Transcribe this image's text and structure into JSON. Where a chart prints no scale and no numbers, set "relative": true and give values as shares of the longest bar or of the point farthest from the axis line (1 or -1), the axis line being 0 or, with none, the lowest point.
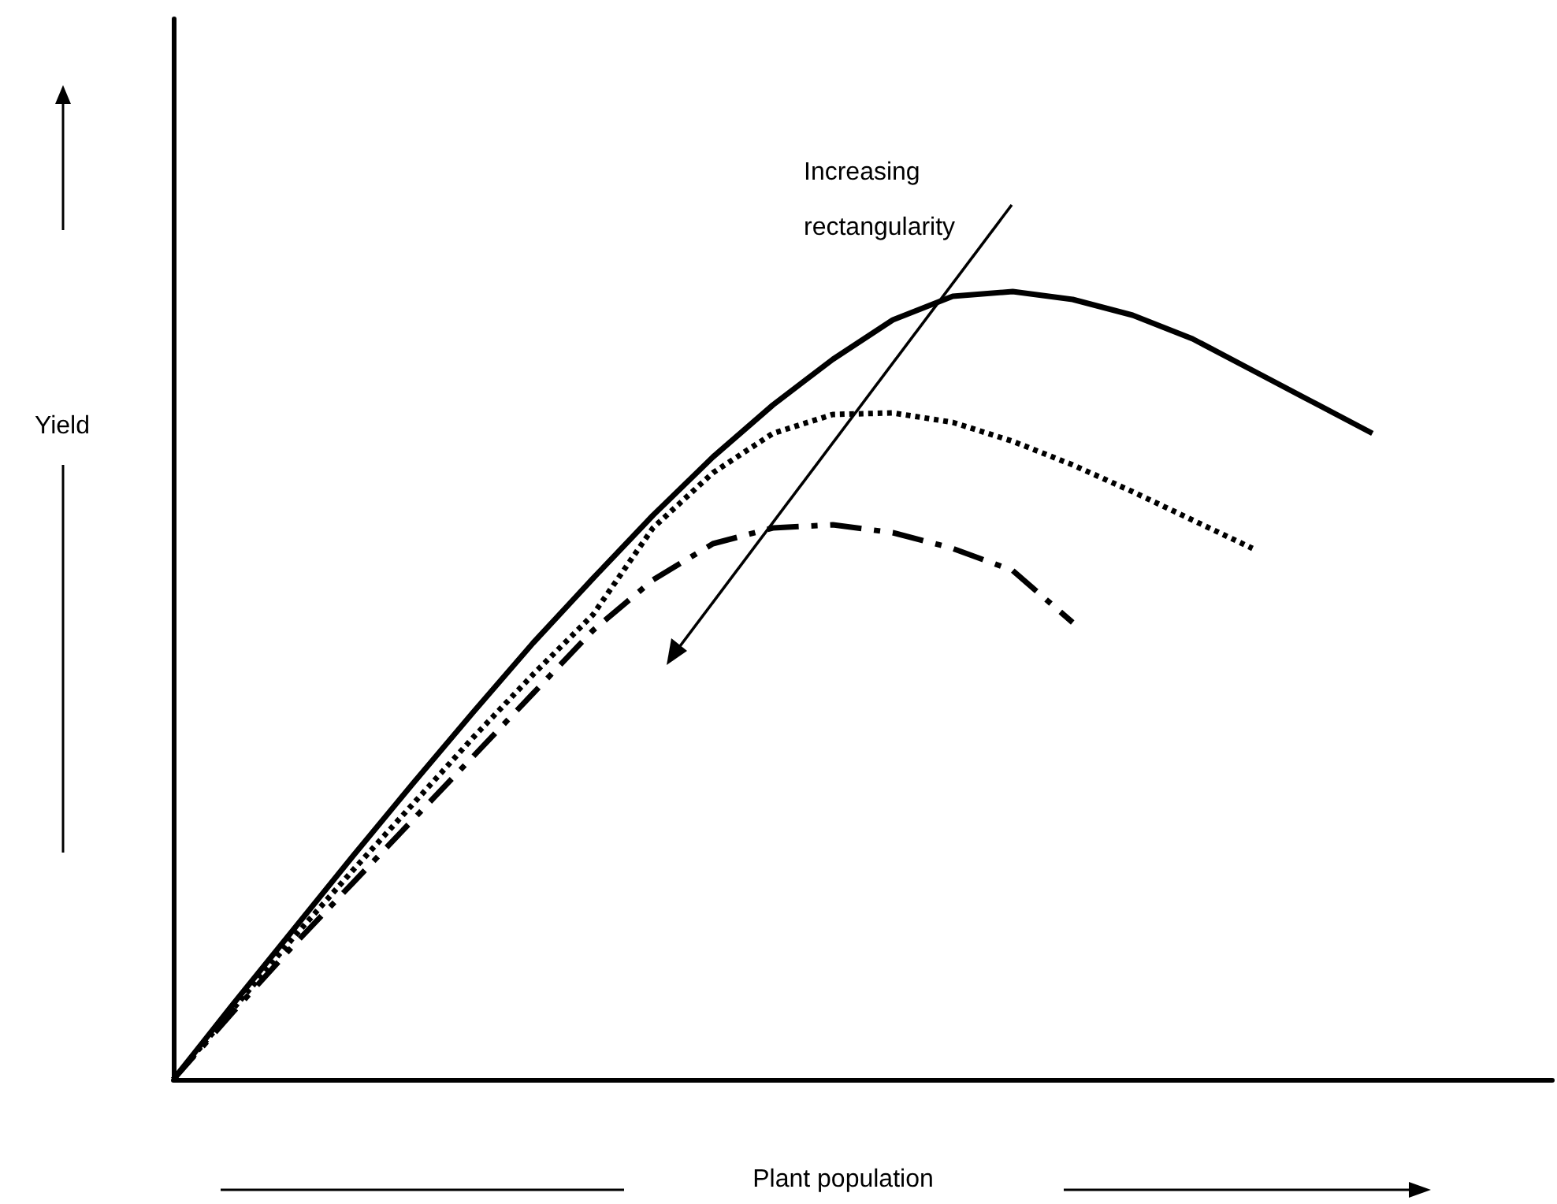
{
  "chart_data": {
    "type": "line",
    "relative": true,
    "xlabel": "Plant population",
    "ylabel": "Yield",
    "annotations": [
      "Increasing rectangularity"
    ],
    "categories": [
      null,
      null,
      null,
      null,
      null,
      null,
      null,
      null,
      null,
      null,
      null,
      null,
      null,
      null,
      null,
      null,
      null,
      null,
      null,
      null,
      null,
      null,
      null,
      null
    ],
    "series": [
      {
        "color": "#000000",
        "line_style": "solid",
        "values": [
          0,
          0.096,
          0.19,
          0.284,
          0.376,
          0.466,
          0.554,
          0.636,
          0.716,
          0.79,
          0.856,
          0.914,
          0.964,
          0.994,
          1,
          0.99,
          0.97,
          0.94,
          0.9,
          0.86,
          0.82,
          null,
          null,
          null
        ]
      },
      {
        "color": "#000000",
        "line_style": "dotted",
        "values": [
          0,
          0.09,
          0.18,
          0.266,
          0.35,
          0.434,
          0.514,
          0.59,
          0.7,
          0.77,
          0.82,
          0.844,
          0.846,
          0.834,
          0.81,
          0.78,
          0.746,
          0.71,
          0.674,
          null,
          null,
          null,
          null,
          null
        ]
      },
      {
        "color": "#000000",
        "line_style": "dashed",
        "values": [
          0,
          0.086,
          0.17,
          0.25,
          0.33,
          0.41,
          0.49,
          0.57,
          0.634,
          0.68,
          0.7,
          0.704,
          0.694,
          0.674,
          0.646,
          0.58,
          null,
          null,
          null,
          null,
          null,
          null,
          null,
          null
        ]
      }
    ],
    "marker": "none",
    "grid": false,
    "legend": false
  }
}
